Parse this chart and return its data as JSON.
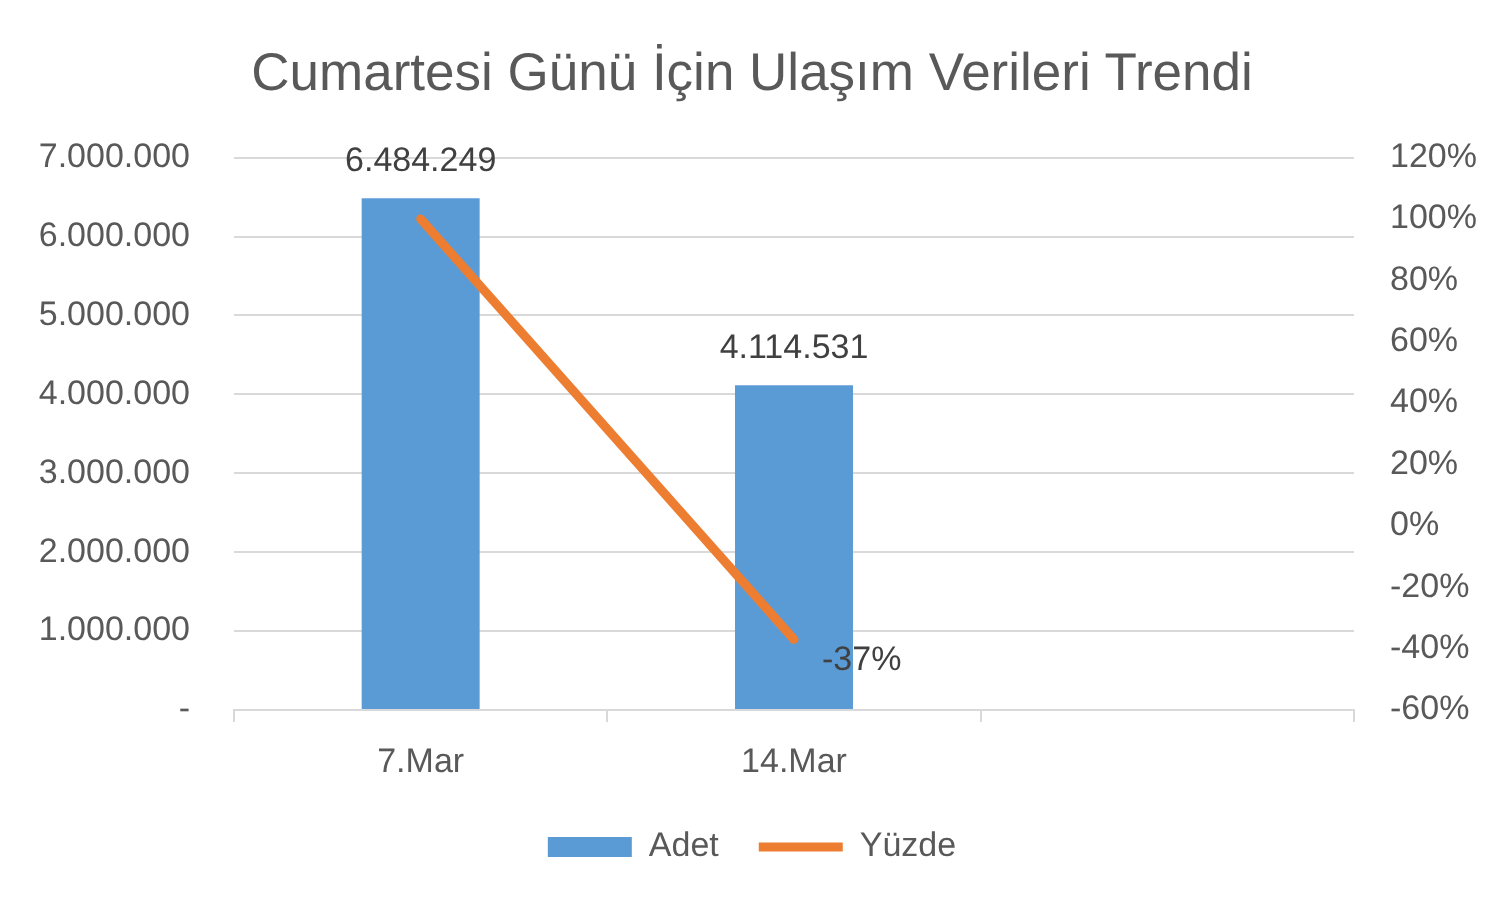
{
  "chart_data": {
    "type": "bar",
    "title": "Cumartesi Günü İçin Ulaşım Verileri Trendi",
    "categories": [
      "7.Mar",
      "14.Mar",
      null
    ],
    "series": [
      {
        "name": "Adet",
        "type": "bar",
        "color": "#5b9bd5",
        "values": [
          6484249,
          4114531,
          null
        ],
        "value_labels": [
          "6.484.249",
          "4.114.531",
          null
        ]
      },
      {
        "name": "Yüzde",
        "type": "line",
        "axis": "y2",
        "color": "#ed7d31",
        "values": [
          100,
          -37,
          null
        ],
        "value_labels": [
          null,
          "-37%",
          null
        ]
      }
    ],
    "ylim": [
      0,
      7000000
    ],
    "yticks": [
      {
        "value": 0,
        "label": "-"
      },
      {
        "value": 1000000,
        "label": "1.000.000"
      },
      {
        "value": 2000000,
        "label": "2.000.000"
      },
      {
        "value": 3000000,
        "label": "3.000.000"
      },
      {
        "value": 4000000,
        "label": "4.000.000"
      },
      {
        "value": 5000000,
        "label": "5.000.000"
      },
      {
        "value": 6000000,
        "label": "6.000.000"
      },
      {
        "value": 7000000,
        "label": "7.000.000"
      }
    ],
    "y2lim": [
      -60,
      120
    ],
    "y2ticks": [
      {
        "value": -60,
        "label": "-60%"
      },
      {
        "value": -40,
        "label": "-40%"
      },
      {
        "value": -20,
        "label": "-20%"
      },
      {
        "value": 0,
        "label": "0%"
      },
      {
        "value": 20,
        "label": "20%"
      },
      {
        "value": 40,
        "label": "40%"
      },
      {
        "value": 60,
        "label": "60%"
      },
      {
        "value": 80,
        "label": "80%"
      },
      {
        "value": 100,
        "label": "100%"
      },
      {
        "value": 120,
        "label": "120%"
      }
    ],
    "grid": "y",
    "legend": "bottom",
    "marker": "none"
  }
}
